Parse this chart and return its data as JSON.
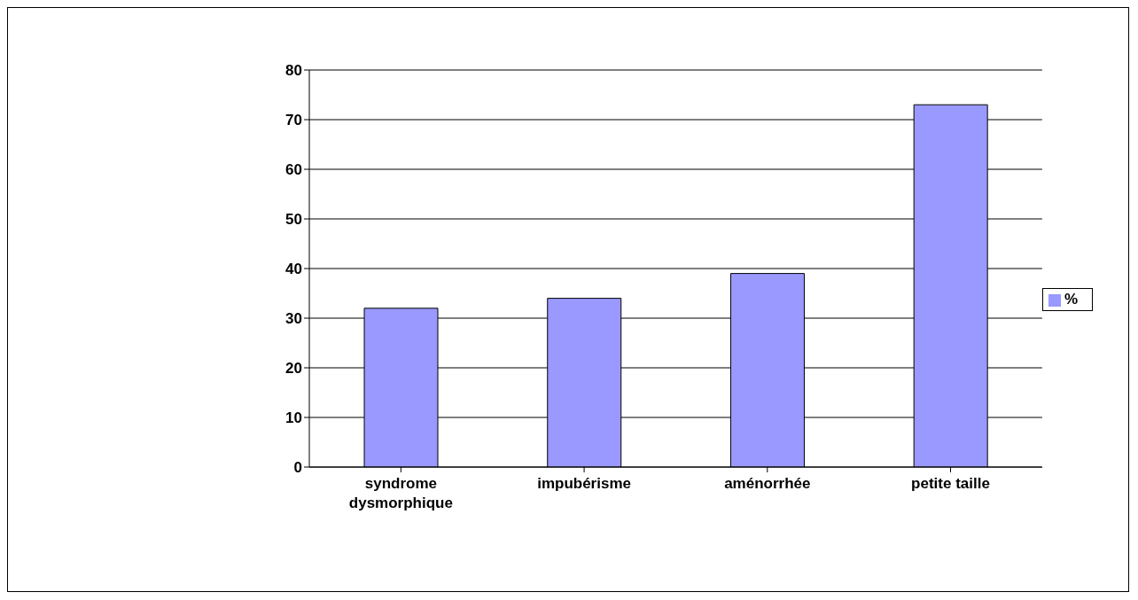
{
  "chart_data": {
    "type": "bar",
    "categories": [
      "syndrome dysmorphique",
      "impubérisme",
      "aménorrhée",
      "petite taille"
    ],
    "series": [
      {
        "name": "%",
        "color": "#9999ff",
        "values": [
          32,
          34,
          39,
          73
        ]
      }
    ],
    "ylim": [
      0,
      80
    ],
    "yticks": [
      0,
      10,
      20,
      30,
      40,
      50,
      60,
      70,
      80
    ],
    "grid": "y",
    "legend": "right"
  }
}
